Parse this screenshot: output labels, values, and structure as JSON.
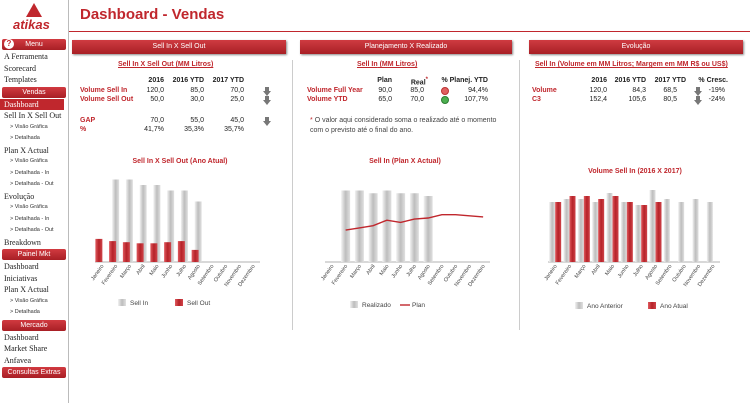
{
  "app": {
    "logo_text": "atikas",
    "title": "Dashboard - Vendas"
  },
  "sidebar": {
    "menu_label": "Menu",
    "items_top": [
      "A Ferramenta",
      "Scorecard",
      "Templates"
    ],
    "vendas_label": "Vendas",
    "vendas_items": [
      {
        "label": "Dashboard",
        "level": 0,
        "active": true
      },
      {
        "label": "Sell In X Sell Out",
        "level": 0
      },
      {
        "label": "> Visão Gráfica",
        "level": 1
      },
      {
        "label": "> Detalhada",
        "level": 1
      },
      {
        "label": "Plan X Actual",
        "level": 0
      },
      {
        "label": "> Visão Gráfica",
        "level": 1
      },
      {
        "label": "> Detalhada - In",
        "level": 1
      },
      {
        "label": "> Detalhada - Out",
        "level": 1
      },
      {
        "label": "Evolução",
        "level": 0
      },
      {
        "label": "> Visão Gráfica",
        "level": 1
      },
      {
        "label": "> Detalhada - In",
        "level": 1
      },
      {
        "label": "> Detalhada - Out",
        "level": 1
      },
      {
        "label": "Breakdown",
        "level": 0
      }
    ],
    "painel_label": "Painel Mkt",
    "painel_items": [
      {
        "label": "Dashboard",
        "level": 0
      },
      {
        "label": "Iniciativas",
        "level": 0
      },
      {
        "label": "Plan X Actual",
        "level": 0
      },
      {
        "label": "> Visão Gráfica",
        "level": 1
      },
      {
        "label": "> Detalhada",
        "level": 1
      }
    ],
    "mercado_label": "Mercado",
    "mercado_items": [
      {
        "label": "Dashboard",
        "level": 0
      },
      {
        "label": "Market Share",
        "level": 0
      },
      {
        "label": "Anfavea",
        "level": 0
      }
    ],
    "extras_label": "Consultas Extras"
  },
  "panels": {
    "p1": {
      "header": "Sell In X Sell Out",
      "subtitle": "Sell In X Sell Out (MM Litros)",
      "cols": [
        "2016",
        "2016 YTD",
        "2017 YTD"
      ],
      "rows": [
        {
          "label": "Volume Sell In",
          "v": [
            "120,0",
            "85,0",
            "70,0"
          ]
        },
        {
          "label": "Volume Sell Out",
          "v": [
            "50,0",
            "30,0",
            "25,0"
          ]
        },
        {
          "label": "GAP",
          "v": [
            "70,0",
            "55,0",
            "45,0"
          ]
        },
        {
          "label": "%",
          "v": [
            "41,7%",
            "35,3%",
            "35,7%"
          ]
        }
      ]
    },
    "p2": {
      "header": "Planejamento X Realizado",
      "subtitle_u": "Sell In",
      "subtitle_rest": " (MM Litros)",
      "cols": [
        "Plan",
        "Real",
        "% Planej. YTD"
      ],
      "real_mark": "*",
      "rows": [
        {
          "label": "Volume Full Year",
          "v": [
            "90,0",
            "85,0",
            "94,4%"
          ],
          "status": "#e06060"
        },
        {
          "label": "Volume YTD",
          "v": [
            "65,0",
            "70,0",
            "107,7%"
          ],
          "status": "#4caf50"
        }
      ],
      "note_star": "*",
      "note": "O valor aqui considerado soma o realizado até o momento com o previsto até o final do ano."
    },
    "p3": {
      "header": "Evolução",
      "subtitle_u": "Sell In",
      "subtitle_rest": "  (Volume em MM Litros; Margem em MM R$ ou US$)",
      "cols": [
        "2016",
        "2016 YTD",
        "2017 YTD",
        "% Cresc."
      ],
      "rows": [
        {
          "label": "Volume",
          "v": [
            "120,0",
            "84,3",
            "68,5",
            "-19%"
          ]
        },
        {
          "label": "C3",
          "v": [
            "152,4",
            "105,6",
            "80,5",
            "-24%"
          ]
        }
      ]
    }
  },
  "colors": {
    "accent": "#c0272d",
    "gray_bar": "#c8c8c8"
  },
  "chart_data": [
    {
      "type": "bar",
      "title": "Sell In X Sell Out (Ano Atual)",
      "categories": [
        "Janeiro",
        "Fevereiro",
        "Março",
        "Abril",
        "Maio",
        "Junho",
        "Julho",
        "Agosto",
        "Setembro",
        "Outubro",
        "Novembro",
        "Dezembro"
      ],
      "series": [
        {
          "name": "Sell In",
          "values": [
            0,
            15,
            15,
            14,
            14,
            13,
            13,
            11,
            0,
            0,
            0,
            0
          ]
        },
        {
          "name": "Sell Out",
          "values": [
            4.2,
            3.8,
            3.6,
            3.4,
            3.4,
            3.6,
            3.8,
            2.2,
            0,
            0,
            0,
            0
          ]
        }
      ],
      "ylim": [
        0,
        16
      ]
    },
    {
      "type": "bar+line",
      "title": "Sell In (Plan X Actual)",
      "categories": [
        "Janeiro",
        "Fevereiro",
        "Março",
        "Abril",
        "Maio",
        "Junho",
        "Julho",
        "Agosto",
        "Setembro",
        "Outubro",
        "Novembro",
        "Dezembro"
      ],
      "series": [
        {
          "name": "Realizado",
          "type": "bar",
          "values": [
            0,
            13,
            13,
            12.5,
            13,
            12.5,
            12.5,
            12,
            0,
            0,
            0,
            0
          ]
        },
        {
          "name": "Plan",
          "type": "line",
          "values": [
            null,
            5.8,
            6.2,
            6.6,
            7.6,
            7.2,
            7.8,
            8.0,
            8.6,
            8.6,
            8.4,
            8.2
          ]
        }
      ],
      "ylim": [
        0,
        16
      ]
    },
    {
      "type": "bar",
      "title": "Volume Sell In (2016 X 2017)",
      "categories": [
        "Janeiro",
        "Fevereiro",
        "Março",
        "Abril",
        "Maio",
        "Junho",
        "Julho",
        "Agosto",
        "Setembro",
        "Outubro",
        "Novembro",
        "Dezembro"
      ],
      "series": [
        {
          "name": "Ano Anterior",
          "values": [
            10,
            10.5,
            10.5,
            10,
            11.5,
            10,
            9.5,
            12,
            10.5,
            10,
            10.5,
            10
          ]
        },
        {
          "name": "Ano Atual",
          "values": [
            10,
            11,
            11,
            10.5,
            11,
            10,
            9.5,
            10,
            0,
            0,
            0,
            0
          ]
        }
      ],
      "ylim": [
        0,
        16
      ]
    }
  ]
}
